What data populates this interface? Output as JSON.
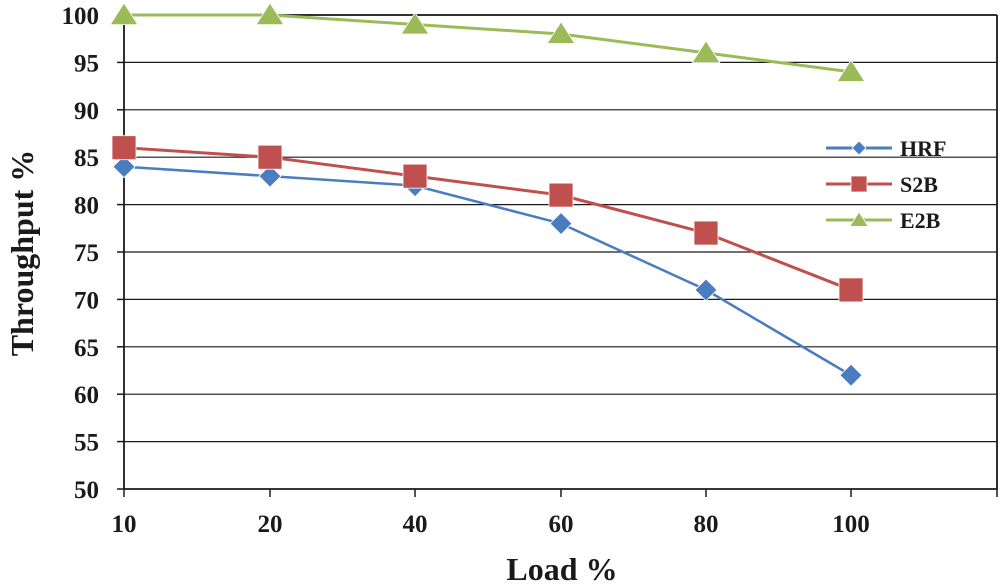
{
  "chart_data": {
    "type": "line",
    "title": "",
    "xlabel": "Load %",
    "ylabel": "Throughput %",
    "categories": [
      "10",
      "20",
      "40",
      "60",
      "80",
      "100"
    ],
    "ylim": [
      50,
      100
    ],
    "yticks": [
      "50",
      "55",
      "60",
      "65",
      "70",
      "75",
      "80",
      "85",
      "90",
      "95",
      "100"
    ],
    "grid": "horizontal",
    "legend_position": "right",
    "series": [
      {
        "name": "HRF",
        "marker": "diamond",
        "color": "#4a7dc0",
        "values": [
          84,
          83,
          82,
          78,
          71,
          62
        ]
      },
      {
        "name": "S2B",
        "marker": "square",
        "color": "#c0504d",
        "values": [
          86,
          85,
          83,
          81,
          77,
          71
        ]
      },
      {
        "name": "E2B",
        "marker": "triangle",
        "color": "#9bbb59",
        "values": [
          100,
          100,
          99,
          98,
          96,
          94
        ]
      }
    ]
  }
}
